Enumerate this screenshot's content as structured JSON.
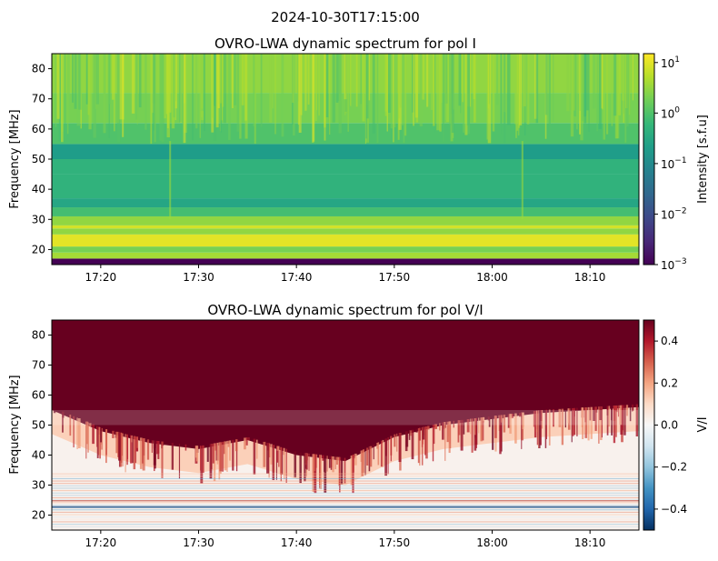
{
  "suptitle": "2024-10-30T17:15:00",
  "colors": {
    "viridis": [
      "#440154",
      "#482878",
      "#3e4989",
      "#31688e",
      "#26828e",
      "#1f9e89",
      "#35b779",
      "#6ece58",
      "#b5de2b",
      "#fde725"
    ],
    "rdbu_r": [
      "#053061",
      "#2166ac",
      "#4393c3",
      "#92c5de",
      "#d1e5f0",
      "#f7f7f7",
      "#fddbc7",
      "#f4a582",
      "#d6604d",
      "#b2182b",
      "#67001f"
    ]
  },
  "chart_data": [
    {
      "type": "heatmap",
      "title": "OVRO-LWA dynamic spectrum for pol I",
      "xlabel": "",
      "ylabel": "Frequency [MHz]",
      "xlim": [
        "17:15",
        "18:15"
      ],
      "ylim": [
        15,
        85
      ],
      "xticks": [
        "17:20",
        "17:30",
        "17:40",
        "17:50",
        "18:00",
        "18:10"
      ],
      "yticks": [
        20,
        30,
        40,
        50,
        60,
        70,
        80
      ],
      "colorbar": {
        "label": "Intensity [s.f.u]",
        "scale": "log",
        "range": [
          0.001,
          15
        ],
        "ticks": [
          {
            "base": "10",
            "exp": "1",
            "value": 10
          },
          {
            "base": "10",
            "exp": "0",
            "value": 1
          },
          {
            "base": "10",
            "exp": "−1",
            "value": 0.1
          },
          {
            "base": "10",
            "exp": "−2",
            "value": 0.01
          },
          {
            "base": "10",
            "exp": "−3",
            "value": 0.001
          }
        ]
      },
      "frequency_bands": [
        {
          "freq": [
            15,
            17
          ],
          "intensity": 0.001
        },
        {
          "freq": [
            17,
            19
          ],
          "intensity": 4
        },
        {
          "freq": [
            19,
            21
          ],
          "intensity": 2
        },
        {
          "freq": [
            21,
            25
          ],
          "intensity": 10
        },
        {
          "freq": [
            25,
            27
          ],
          "intensity": 3
        },
        {
          "freq": [
            27,
            28
          ],
          "intensity": 8
        },
        {
          "freq": [
            28,
            31
          ],
          "intensity": 3
        },
        {
          "freq": [
            31,
            34
          ],
          "intensity": 0.8
        },
        {
          "freq": [
            34,
            37
          ],
          "intensity": 0.3
        },
        {
          "freq": [
            37,
            45
          ],
          "intensity": 0.5
        },
        {
          "freq": [
            45,
            50
          ],
          "intensity": 0.5
        },
        {
          "freq": [
            50,
            55
          ],
          "intensity": 0.2
        },
        {
          "freq": [
            55,
            62
          ],
          "intensity": 1
        },
        {
          "freq": [
            62,
            72
          ],
          "intensity": 2
        },
        {
          "freq": [
            72,
            85
          ],
          "intensity": 3
        }
      ]
    },
    {
      "type": "heatmap",
      "title": "OVRO-LWA dynamic spectrum for pol V/I",
      "xlabel": "",
      "ylabel": "Frequency [MHz]",
      "xlim": [
        "17:15",
        "18:15"
      ],
      "ylim": [
        15,
        85
      ],
      "xticks": [
        "17:20",
        "17:30",
        "17:40",
        "17:50",
        "18:00",
        "18:10"
      ],
      "yticks": [
        20,
        30,
        40,
        50,
        60,
        70,
        80
      ],
      "colorbar": {
        "label": "V/I",
        "scale": "linear",
        "range": [
          -0.5,
          0.5
        ],
        "ticks": [
          {
            "label": "0.4",
            "value": 0.4
          },
          {
            "label": "0.2",
            "value": 0.2
          },
          {
            "label": "0.0",
            "value": 0
          },
          {
            "label": "−0.2",
            "value": -0.2
          },
          {
            "label": "−0.4",
            "value": -0.4
          }
        ]
      },
      "saturation_boundary_mhz": [
        {
          "time": "17:15",
          "freq": 55
        },
        {
          "time": "17:20",
          "freq": 48
        },
        {
          "time": "17:25",
          "freq": 44
        },
        {
          "time": "17:30",
          "freq": 42
        },
        {
          "time": "17:35",
          "freq": 45
        },
        {
          "time": "17:40",
          "freq": 40
        },
        {
          "time": "17:45",
          "freq": 38
        },
        {
          "time": "17:50",
          "freq": 46
        },
        {
          "time": "17:55",
          "freq": 50
        },
        {
          "time": "18:00",
          "freq": 52
        },
        {
          "time": "18:05",
          "freq": 54
        },
        {
          "time": "18:10",
          "freq": 55
        },
        {
          "time": "18:15",
          "freq": 56
        }
      ]
    }
  ]
}
